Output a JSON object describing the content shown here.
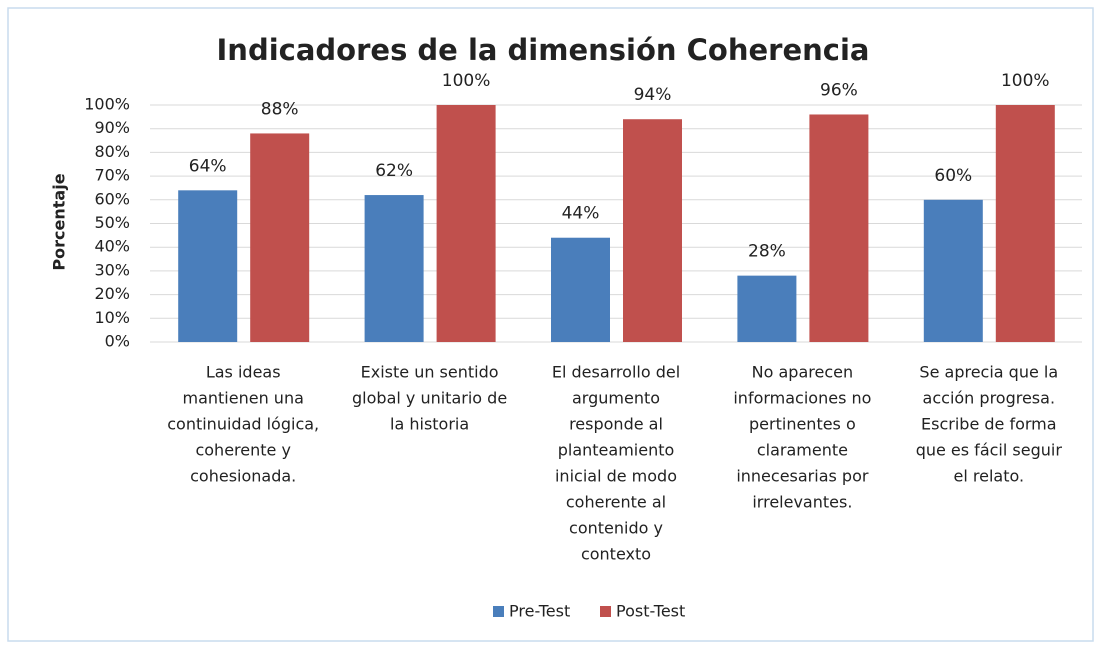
{
  "chart_data": {
    "type": "bar",
    "title": "Indicadores de la dimensión Coherencia",
    "y_label": "Porcentaje",
    "categories": [
      [
        "Las ideas",
        "mantienen una",
        "continuidad lógica,",
        "coherente y",
        "cohesionada."
      ],
      [
        "Existe un sentido",
        "global y unitario de",
        "la historia"
      ],
      [
        "El desarrollo del",
        "argumento",
        "responde al",
        "planteamiento",
        "inicial de modo",
        "coherente al",
        "contenido y",
        "contexto"
      ],
      [
        "No aparecen",
        "informaciones no",
        "pertinentes o",
        "claramente",
        "innecesarias por",
        "irrelevantes."
      ],
      [
        "Se aprecia que la",
        "acción progresa.",
        "Escribe de forma",
        "que es fácil seguir",
        "el relato."
      ]
    ],
    "series": [
      {
        "name": "Pre-Test",
        "color": "#4a7ebb",
        "values": [
          64,
          62,
          44,
          28,
          60
        ],
        "value_labels": [
          "64%",
          "62%",
          "44%",
          "28%",
          "60%"
        ]
      },
      {
        "name": "Post-Test",
        "color": "#c0504d",
        "values": [
          88,
          100,
          94,
          96,
          100
        ],
        "value_labels": [
          "88%",
          "100%",
          "94%",
          "96%",
          "100%"
        ]
      }
    ],
    "ylim": [
      0,
      100
    ],
    "yticks": [
      {
        "value": 0,
        "label": "0%"
      },
      {
        "value": 10,
        "label": "10%"
      },
      {
        "value": 20,
        "label": "20%"
      },
      {
        "value": 30,
        "label": "30%"
      },
      {
        "value": 40,
        "label": "40%"
      },
      {
        "value": 50,
        "label": "50%"
      },
      {
        "value": 60,
        "label": "60%"
      },
      {
        "value": 70,
        "label": "70%"
      },
      {
        "value": 80,
        "label": "80%"
      },
      {
        "value": 90,
        "label": "90%"
      },
      {
        "value": 100,
        "label": "100%"
      }
    ],
    "grid": true,
    "legend": "bottom"
  }
}
